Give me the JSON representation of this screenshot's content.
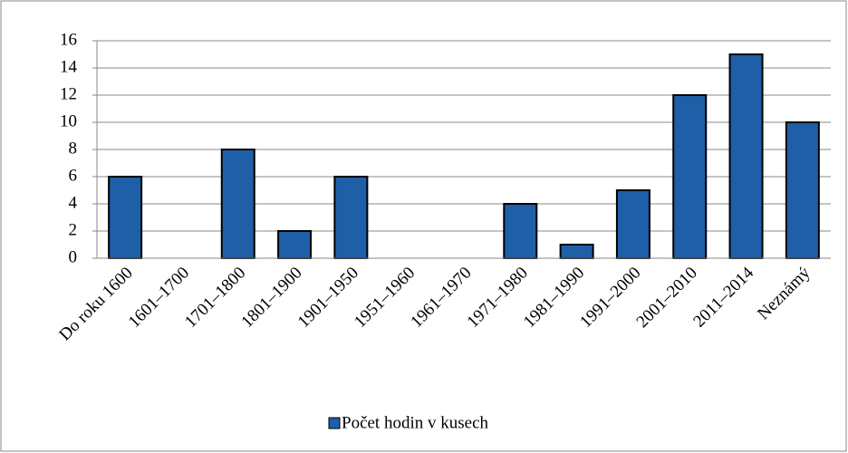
{
  "chart_data": {
    "type": "bar",
    "categories": [
      "Do roku 1600",
      "1601–1700",
      "1701–1800",
      "1801–1900",
      "1901–1950",
      "1951–1960",
      "1961–1970",
      "1971–1980",
      "1981–1990",
      "1991–2000",
      "2001–2010",
      "2011–2014",
      "Neznámý"
    ],
    "series": [
      {
        "name": "Počet hodin v kusech",
        "color": "#1f5fa8",
        "values": [
          6,
          0,
          8,
          2,
          6,
          0,
          0,
          4,
          1,
          5,
          12,
          15,
          10
        ]
      }
    ],
    "ylim": [
      0,
      16
    ],
    "yticks": [
      0,
      2,
      4,
      6,
      8,
      10,
      12,
      14,
      16
    ],
    "grid": true,
    "legend": "bottom"
  }
}
